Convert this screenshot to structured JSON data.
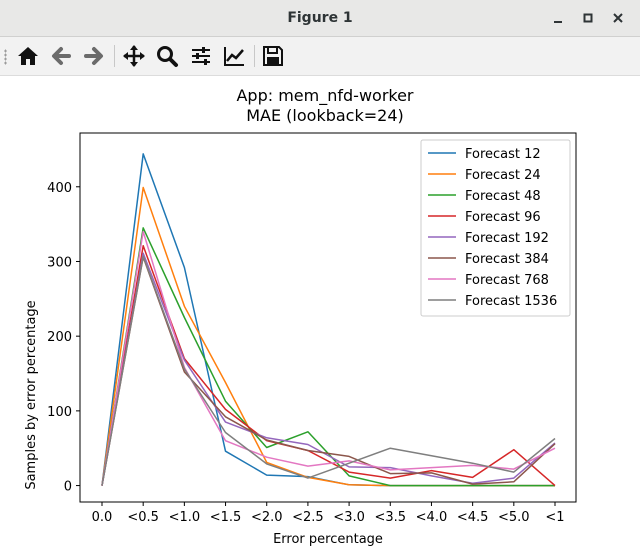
{
  "window": {
    "title": "Figure 1"
  },
  "toolbar": {
    "buttons": [
      {
        "name": "home-button",
        "icon": "home-icon"
      },
      {
        "name": "back-button",
        "icon": "arrow-left-icon"
      },
      {
        "name": "forward-button",
        "icon": "arrow-right-icon"
      },
      {
        "name": "pan-button",
        "icon": "move-icon"
      },
      {
        "name": "zoom-button",
        "icon": "magnifier-icon"
      },
      {
        "name": "configure-subplots-button",
        "icon": "sliders-icon"
      },
      {
        "name": "edit-axes-button",
        "icon": "line-chart-icon"
      },
      {
        "name": "save-button",
        "icon": "floppy-disk-icon"
      }
    ]
  },
  "chart_data": {
    "type": "line",
    "title": "App: mem_nfd-worker",
    "subtitle": "MAE (lookback=24)",
    "xlabel": "Error percentage",
    "ylabel": "Samples by error percentage",
    "categories": [
      "0.0",
      "<0.5",
      "<1.0",
      "<1.5",
      "<2.0",
      "<2.5",
      "<3.0",
      "<3.5",
      "<4.0",
      "<4.5",
      "<5.0",
      "<1"
    ],
    "yticks": [
      0,
      100,
      200,
      300,
      400
    ],
    "ylim": [
      -22,
      472
    ],
    "grid": false,
    "legend_position": "top-right",
    "series": [
      {
        "name": "Forecast 12",
        "color": "#1f77b4",
        "values": [
          0,
          444,
          292,
          46,
          14,
          12,
          1,
          0,
          0,
          0,
          0,
          0
        ]
      },
      {
        "name": "Forecast 24",
        "color": "#ff7f0e",
        "values": [
          0,
          399,
          240,
          138,
          31,
          11,
          1,
          0,
          0,
          0,
          0,
          0
        ]
      },
      {
        "name": "Forecast 48",
        "color": "#2ca02c",
        "values": [
          0,
          345,
          225,
          113,
          51,
          72,
          13,
          0,
          0,
          0,
          0,
          0
        ]
      },
      {
        "name": "Forecast 96",
        "color": "#d62728",
        "values": [
          0,
          321,
          170,
          102,
          60,
          47,
          18,
          10,
          20,
          11,
          48,
          0
        ]
      },
      {
        "name": "Forecast 192",
        "color": "#9467bd",
        "values": [
          0,
          311,
          168,
          85,
          64,
          55,
          25,
          24,
          13,
          3,
          10,
          57
        ]
      },
      {
        "name": "Forecast 384",
        "color": "#8c564b",
        "values": [
          0,
          306,
          152,
          92,
          61,
          47,
          39,
          16,
          17,
          2,
          5,
          56
        ]
      },
      {
        "name": "Forecast 768",
        "color": "#e377c2",
        "values": [
          0,
          340,
          158,
          60,
          38,
          26,
          33,
          21,
          24,
          27,
          22,
          50
        ]
      },
      {
        "name": "Forecast 1536",
        "color": "#7f7f7f",
        "values": [
          0,
          307,
          156,
          71,
          29,
          10,
          30,
          50,
          40,
          30,
          18,
          63
        ]
      }
    ]
  }
}
